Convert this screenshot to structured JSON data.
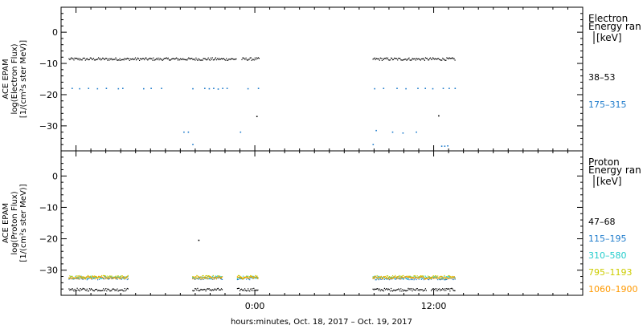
{
  "chart_data": [
    {
      "type": "scatter",
      "panel": "electron",
      "ylabel_lines": [
        "ACE EPAM",
        "log(Electron Flux)",
        "[1/(cm²s ster MeV)]"
      ],
      "ylim": [
        -38,
        8
      ],
      "yticks": [
        0,
        -10,
        -20,
        -30
      ],
      "ytick_labels": [
        "0",
        "−10",
        "−20",
        "−30"
      ],
      "legend_title_lines": [
        "Electron",
        "Energy ran",
        "[keV]"
      ],
      "series": [
        {
          "name": "38–53",
          "color": "#000000",
          "segments": [
            [
              -12.5,
              -1.25,
              -8.6
            ],
            [
              -0.9,
              0.3,
              -8.6
            ],
            [
              7.9,
              13.4,
              -8.6
            ]
          ],
          "points": [
            [
              0.1,
              -27
            ],
            [
              12.3,
              -26.8
            ]
          ]
        },
        {
          "name": "175–315",
          "color": "#1f7ccc",
          "points": [
            [
              -12.3,
              -18
            ],
            [
              -11.8,
              -18.1
            ],
            [
              -11.2,
              -18
            ],
            [
              -10.6,
              -18.1
            ],
            [
              -10.0,
              -18
            ],
            [
              -9.2,
              -18.1
            ],
            [
              -8.9,
              -18
            ],
            [
              -7.5,
              -18.1
            ],
            [
              -7.0,
              -18
            ],
            [
              -6.3,
              -18
            ],
            [
              -4.2,
              -18.1
            ],
            [
              -3.4,
              -18
            ],
            [
              -3.1,
              -18.1
            ],
            [
              -2.8,
              -18
            ],
            [
              -2.5,
              -18.2
            ],
            [
              -2.2,
              -18
            ],
            [
              -1.9,
              -18
            ],
            [
              -0.5,
              -18.1
            ],
            [
              0.2,
              -18
            ],
            [
              8.0,
              -18.1
            ],
            [
              8.6,
              -18
            ],
            [
              9.5,
              -18
            ],
            [
              10.1,
              -18.1
            ],
            [
              10.9,
              -18
            ],
            [
              11.4,
              -18
            ],
            [
              11.9,
              -18.1
            ],
            [
              12.6,
              -18
            ],
            [
              13.0,
              -18
            ],
            [
              13.4,
              -18
            ],
            [
              -4.8,
              -32
            ],
            [
              -4.5,
              -32
            ],
            [
              -4.2,
              -36
            ],
            [
              -1.0,
              -32
            ],
            [
              7.9,
              -36
            ],
            [
              8.1,
              -31.5
            ],
            [
              9.2,
              -32
            ],
            [
              9.9,
              -32.3
            ],
            [
              10.8,
              -32
            ],
            [
              12.5,
              -36.5
            ],
            [
              12.7,
              -36.5
            ],
            [
              12.9,
              -36.4
            ]
          ]
        }
      ]
    },
    {
      "type": "scatter",
      "panel": "proton",
      "ylabel_lines": [
        "ACE EPAM",
        "log(Proton Flux)",
        "[1/(cm²s ster MeV)]"
      ],
      "ylim": [
        -38,
        8
      ],
      "yticks": [
        0,
        -10,
        -20,
        -30
      ],
      "ytick_labels": [
        "0",
        "−10",
        "−20",
        "−30"
      ],
      "legend_title_lines": [
        "Proton",
        "Energy ran",
        "[keV]"
      ],
      "series": [
        {
          "name": "47–68",
          "color": "#000000",
          "segments": [
            [
              -12.5,
              -8.5,
              -36.2
            ],
            [
              -4.2,
              -2.2,
              -36.2
            ],
            [
              -1.2,
              0.2,
              -36.2
            ],
            [
              7.9,
              11.5,
              -36.2
            ],
            [
              11.8,
              13.4,
              -36.2
            ]
          ],
          "points": [
            [
              -3.8,
              -20.5
            ]
          ]
        },
        {
          "name": "115–195",
          "color": "#1f7ccc",
          "segments": [
            [
              -12.5,
              -8.5,
              -32.6
            ],
            [
              -4.2,
              -2.2,
              -32.6
            ],
            [
              -1.2,
              0.2,
              -32.6
            ],
            [
              7.9,
              13.4,
              -32.6
            ]
          ]
        },
        {
          "name": "310–580",
          "color": "#22cccc",
          "segments": [
            [
              -12.5,
              -8.5,
              -32.3
            ],
            [
              -4.2,
              -2.2,
              -32.3
            ],
            [
              -1.2,
              0.2,
              -32.3
            ],
            [
              7.9,
              13.4,
              -32.3
            ]
          ]
        },
        {
          "name": "795–1193",
          "color": "#cccc00",
          "segments": [
            [
              -12.5,
              -8.5,
              -32.1
            ],
            [
              -4.2,
              -2.2,
              -32.1
            ],
            [
              -1.2,
              0.2,
              -32.1
            ],
            [
              7.9,
              13.4,
              -32.1
            ]
          ]
        },
        {
          "name": "1060–1900",
          "color": "#ff9900",
          "segments": [
            [
              -12.5,
              -8.5,
              -32.4
            ],
            [
              -4.2,
              -2.2,
              -32.4
            ],
            [
              -1.2,
              0.2,
              -32.4
            ],
            [
              7.9,
              13.4,
              -32.4
            ]
          ]
        }
      ]
    }
  ],
  "x_axis": {
    "xlim": [
      -13,
      22
    ],
    "major_ticks": [
      0,
      12
    ],
    "major_tick_labels": [
      "0:00",
      "12:00"
    ],
    "minor_tick_step": 1,
    "label": "hours:minutes, Oct. 18, 2017 – Oct. 19, 2017"
  }
}
